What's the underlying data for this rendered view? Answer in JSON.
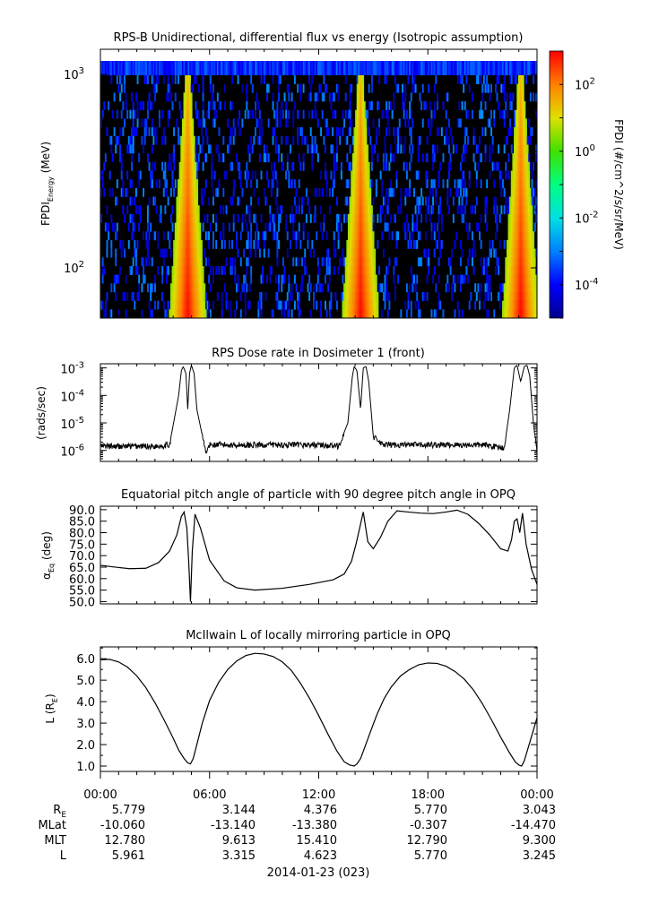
{
  "date_label": "2014-01-23 (023)",
  "time_ticks": [
    "00:00",
    "06:00",
    "12:00",
    "18:00",
    "00:00"
  ],
  "ephemeris": {
    "row_labels": [
      "R",
      "MLat",
      "MLT",
      "L"
    ],
    "rows": [
      [
        "5.779",
        "3.144",
        "4.376",
        "5.770",
        "3.043"
      ],
      [
        "-10.060",
        "-13.140",
        "-13.380",
        "-0.307",
        "-14.470"
      ],
      [
        "12.780",
        "9.613",
        "15.410",
        "12.790",
        "9.300"
      ],
      [
        "5.961",
        "3.315",
        "4.623",
        "5.770",
        "3.245"
      ]
    ]
  },
  "colorbar": {
    "label": "FPDI (#/cm^2/s/sr/MeV)",
    "log_range": [
      -5,
      3
    ],
    "tick_labels": [
      "10",
      "10",
      "10",
      "10",
      "10"
    ],
    "tick_exponents": [
      "-4",
      "-2",
      "0",
      "2",
      ""
    ],
    "colors": [
      "#00008c",
      "#0000ff",
      "#0080ff",
      "#00e0e0",
      "#00ff80",
      "#40e000",
      "#e0e000",
      "#ff8000",
      "#ff0000"
    ]
  },
  "chart_data": [
    {
      "type": "heatmap",
      "title": "RPS-B  Unidirectional, differential flux vs energy (Isotropic assumption)",
      "ylabel_main": "FPDI",
      "ylabel_sub": "Energy",
      "ylabel_unit": " (MeV)",
      "y_scale": "log",
      "ylim": [
        55,
        1350
      ],
      "y_tick_labels": [
        "10",
        "10"
      ],
      "y_tick_exponents": [
        "3",
        "2"
      ],
      "xlim_hours": [
        0,
        24
      ],
      "belt_crossings_hours": [
        4.8,
        14.3,
        23.1
      ],
      "background": "black"
    },
    {
      "type": "line",
      "title": "RPS  Dose rate in Dosimeter 1 (front)",
      "ylabel": "(rads/sec)",
      "y_scale": "log",
      "ylim_log": [
        -6.4,
        -2.85
      ],
      "y_tick_labels": [
        "10",
        "10",
        "10",
        "10"
      ],
      "y_tick_exponents": [
        "-3",
        "-4",
        "-5",
        "-6"
      ],
      "x": [
        0,
        3.0,
        3.8,
        4.3,
        4.45,
        4.55,
        4.7,
        4.8,
        4.9,
        5.0,
        5.15,
        5.3,
        5.8,
        6.0,
        12.0,
        13.1,
        13.6,
        13.85,
        13.95,
        14.1,
        14.3,
        14.45,
        14.6,
        14.75,
        15.0,
        15.5,
        16.0,
        21.0,
        22.2,
        22.5,
        22.75,
        22.9,
        23.1,
        23.3,
        23.45,
        23.6,
        23.8,
        24.0
      ],
      "y_log": [
        -5.85,
        -5.85,
        -5.8,
        -4.0,
        -3.1,
        -2.95,
        -3.2,
        -4.5,
        -3.2,
        -2.9,
        -3.2,
        -4.5,
        -6.1,
        -5.8,
        -5.8,
        -5.85,
        -5.0,
        -3.3,
        -2.95,
        -3.1,
        -4.5,
        -3.0,
        -2.95,
        -3.5,
        -5.5,
        -5.8,
        -5.8,
        -5.8,
        -5.9,
        -4.5,
        -3.0,
        -2.9,
        -3.5,
        -2.95,
        -2.9,
        -3.3,
        -5.0,
        -6.1
      ]
    },
    {
      "type": "line",
      "title": "Equatorial pitch angle of particle with 90 degree pitch angle in OPQ",
      "ylabel_main": "α",
      "ylabel_sub": "Eq",
      "ylabel_unit": " (deg)",
      "ylim": [
        49,
        91.5
      ],
      "y_ticks": [
        50,
        55,
        60,
        65,
        70,
        75,
        80,
        85,
        90
      ],
      "x": [
        0,
        0.8,
        1.6,
        2.5,
        3.2,
        3.8,
        4.2,
        4.45,
        4.6,
        4.75,
        4.85,
        4.95,
        5.05,
        5.2,
        5.5,
        6.0,
        6.8,
        7.5,
        8.5,
        10.0,
        11.5,
        12.8,
        13.4,
        13.8,
        14.05,
        14.25,
        14.45,
        14.7,
        15.0,
        15.4,
        15.8,
        16.3,
        16.9,
        17.6,
        18.3,
        19.0,
        19.6,
        20.2,
        20.8,
        21.4,
        22.0,
        22.4,
        22.6,
        22.75,
        22.9,
        23.05,
        23.2,
        23.4,
        23.7,
        24.0
      ],
      "y": [
        65.8,
        65.0,
        64.3,
        64.5,
        67.0,
        72.0,
        79.0,
        87.0,
        89.0,
        82.0,
        68.0,
        50.0,
        72.0,
        88.0,
        82.0,
        68.0,
        59.0,
        56.0,
        55.0,
        55.8,
        57.5,
        59.5,
        62.0,
        67.5,
        75.0,
        82.0,
        89.0,
        76.0,
        73.0,
        78.0,
        85.0,
        89.5,
        89.0,
        88.5,
        88.3,
        89.0,
        89.8,
        88.0,
        84.0,
        79.0,
        73.0,
        72.0,
        77.0,
        85.0,
        86.0,
        80.0,
        88.5,
        75.0,
        64.0,
        57.5
      ]
    },
    {
      "type": "line",
      "title": "McIlwain L of locally mirroring particle in OPQ",
      "ylabel_main": "L (R",
      "ylabel_sub": "E",
      "ylabel_unit": ")",
      "ylim": [
        0.75,
        6.55
      ],
      "y_ticks": [
        1,
        2,
        3,
        4,
        5,
        6
      ],
      "x": [
        0,
        0.5,
        1.0,
        1.5,
        2.0,
        2.5,
        3.0,
        3.5,
        4.0,
        4.3,
        4.6,
        4.8,
        4.95,
        5.1,
        5.3,
        5.6,
        6.0,
        6.5,
        7.0,
        7.5,
        8.0,
        8.5,
        9.0,
        9.5,
        10.0,
        10.5,
        11.0,
        11.5,
        12.0,
        12.5,
        13.0,
        13.4,
        13.7,
        13.95,
        14.1,
        14.3,
        14.5,
        14.8,
        15.2,
        15.6,
        16.0,
        16.5,
        17.0,
        17.5,
        18.0,
        18.5,
        19.0,
        19.5,
        20.0,
        20.5,
        21.0,
        21.5,
        22.0,
        22.5,
        22.8,
        23.0,
        23.15,
        23.3,
        23.6,
        24.0
      ],
      "y": [
        5.95,
        5.97,
        5.85,
        5.6,
        5.2,
        4.65,
        3.95,
        3.15,
        2.3,
        1.75,
        1.35,
        1.15,
        1.1,
        1.35,
        2.0,
        3.0,
        4.05,
        4.9,
        5.5,
        5.9,
        6.15,
        6.25,
        6.22,
        6.1,
        5.85,
        5.45,
        4.85,
        4.15,
        3.35,
        2.5,
        1.7,
        1.2,
        1.05,
        1.0,
        1.1,
        1.35,
        1.8,
        2.5,
        3.4,
        4.15,
        4.7,
        5.2,
        5.5,
        5.72,
        5.8,
        5.78,
        5.65,
        5.4,
        5.05,
        4.55,
        3.9,
        3.15,
        2.35,
        1.6,
        1.2,
        1.05,
        1.0,
        1.25,
        2.1,
        3.25
      ]
    }
  ]
}
